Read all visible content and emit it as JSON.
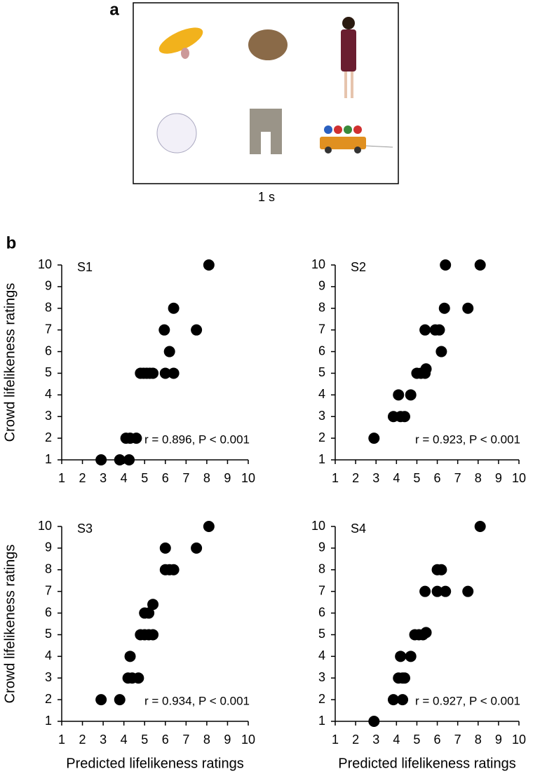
{
  "panel_a": {
    "label": "a",
    "caption": "1 s"
  },
  "panel_b": {
    "label": "b"
  },
  "chart_data": [
    {
      "type": "scatter",
      "title": "S1",
      "color": "#000000",
      "annotation": "r = 0.896, P < 0.001",
      "ylabel": "Crowd lifelikeness ratings",
      "x": [
        8.1,
        6.4,
        5.95,
        7.5,
        6.2,
        6.0,
        6.4,
        4.8,
        4.95,
        5.1,
        5.25,
        5.4,
        4.1,
        4.3,
        4.6,
        2.9,
        3.8,
        4.25
      ],
      "y": [
        10,
        8,
        7,
        7,
        6,
        5,
        5,
        5,
        5,
        5,
        5,
        5,
        2,
        2,
        2,
        1,
        1,
        1
      ],
      "xlim": [
        1,
        10
      ],
      "ylim": [
        1,
        10
      ],
      "xticks": [
        1,
        2,
        3,
        4,
        5,
        6,
        7,
        8,
        9,
        10
      ],
      "yticks": [
        1,
        2,
        3,
        4,
        5,
        6,
        7,
        8,
        9,
        10
      ]
    },
    {
      "type": "scatter",
      "title": "S2",
      "color": "#000000",
      "annotation": "r = 0.923, P < 0.001",
      "x": [
        8.1,
        6.4,
        6.35,
        7.5,
        5.4,
        5.9,
        6.1,
        6.2,
        5.0,
        5.2,
        5.4,
        5.45,
        4.1,
        4.7,
        3.85,
        4.2,
        4.4,
        2.9
      ],
      "y": [
        10,
        10,
        8,
        8,
        7,
        7,
        7,
        6,
        5,
        5,
        5,
        5.2,
        4,
        4,
        3,
        3,
        3,
        2
      ],
      "xlim": [
        1,
        10
      ],
      "ylim": [
        1,
        10
      ],
      "xticks": [
        1,
        2,
        3,
        4,
        5,
        6,
        7,
        8,
        9,
        10
      ],
      "yticks": [
        1,
        2,
        3,
        4,
        5,
        6,
        7,
        8,
        9,
        10
      ]
    },
    {
      "type": "scatter",
      "title": "S3",
      "color": "#000000",
      "annotation": "r = 0.934, P < 0.001",
      "ylabel": "Crowd lifelikeness ratings",
      "xlabel": "Predicted lifelikeness ratings",
      "x": [
        8.1,
        6.0,
        7.5,
        6.0,
        6.2,
        6.4,
        5.4,
        5.0,
        5.2,
        4.8,
        5.0,
        5.2,
        5.4,
        4.3,
        4.2,
        4.4,
        4.7,
        2.9,
        3.8
      ],
      "y": [
        10,
        9,
        9,
        8,
        8,
        8,
        6.4,
        6,
        6,
        5,
        5,
        5,
        5,
        4,
        3,
        3,
        3,
        2,
        2
      ],
      "xlim": [
        1,
        10
      ],
      "ylim": [
        1,
        10
      ],
      "xticks": [
        1,
        2,
        3,
        4,
        5,
        6,
        7,
        8,
        9,
        10
      ],
      "yticks": [
        1,
        2,
        3,
        4,
        5,
        6,
        7,
        8,
        9,
        10
      ]
    },
    {
      "type": "scatter",
      "title": "S4",
      "color": "#000000",
      "annotation": "r = 0.927, P < 0.001",
      "xlabel": "Predicted lifelikeness ratings",
      "x": [
        8.1,
        6.0,
        6.2,
        5.4,
        6.0,
        6.4,
        7.5,
        4.9,
        5.1,
        5.3,
        5.45,
        4.2,
        4.7,
        4.1,
        4.3,
        4.4,
        3.85,
        4.3,
        2.9
      ],
      "y": [
        10,
        8,
        8,
        7,
        7,
        7,
        7,
        5,
        5,
        5,
        5.1,
        4,
        4,
        3,
        3,
        3,
        2,
        2,
        1
      ],
      "xlim": [
        1,
        10
      ],
      "ylim": [
        1,
        10
      ],
      "xticks": [
        1,
        2,
        3,
        4,
        5,
        6,
        7,
        8,
        9,
        10
      ],
      "yticks": [
        1,
        2,
        3,
        4,
        5,
        6,
        7,
        8,
        9,
        10
      ]
    }
  ]
}
